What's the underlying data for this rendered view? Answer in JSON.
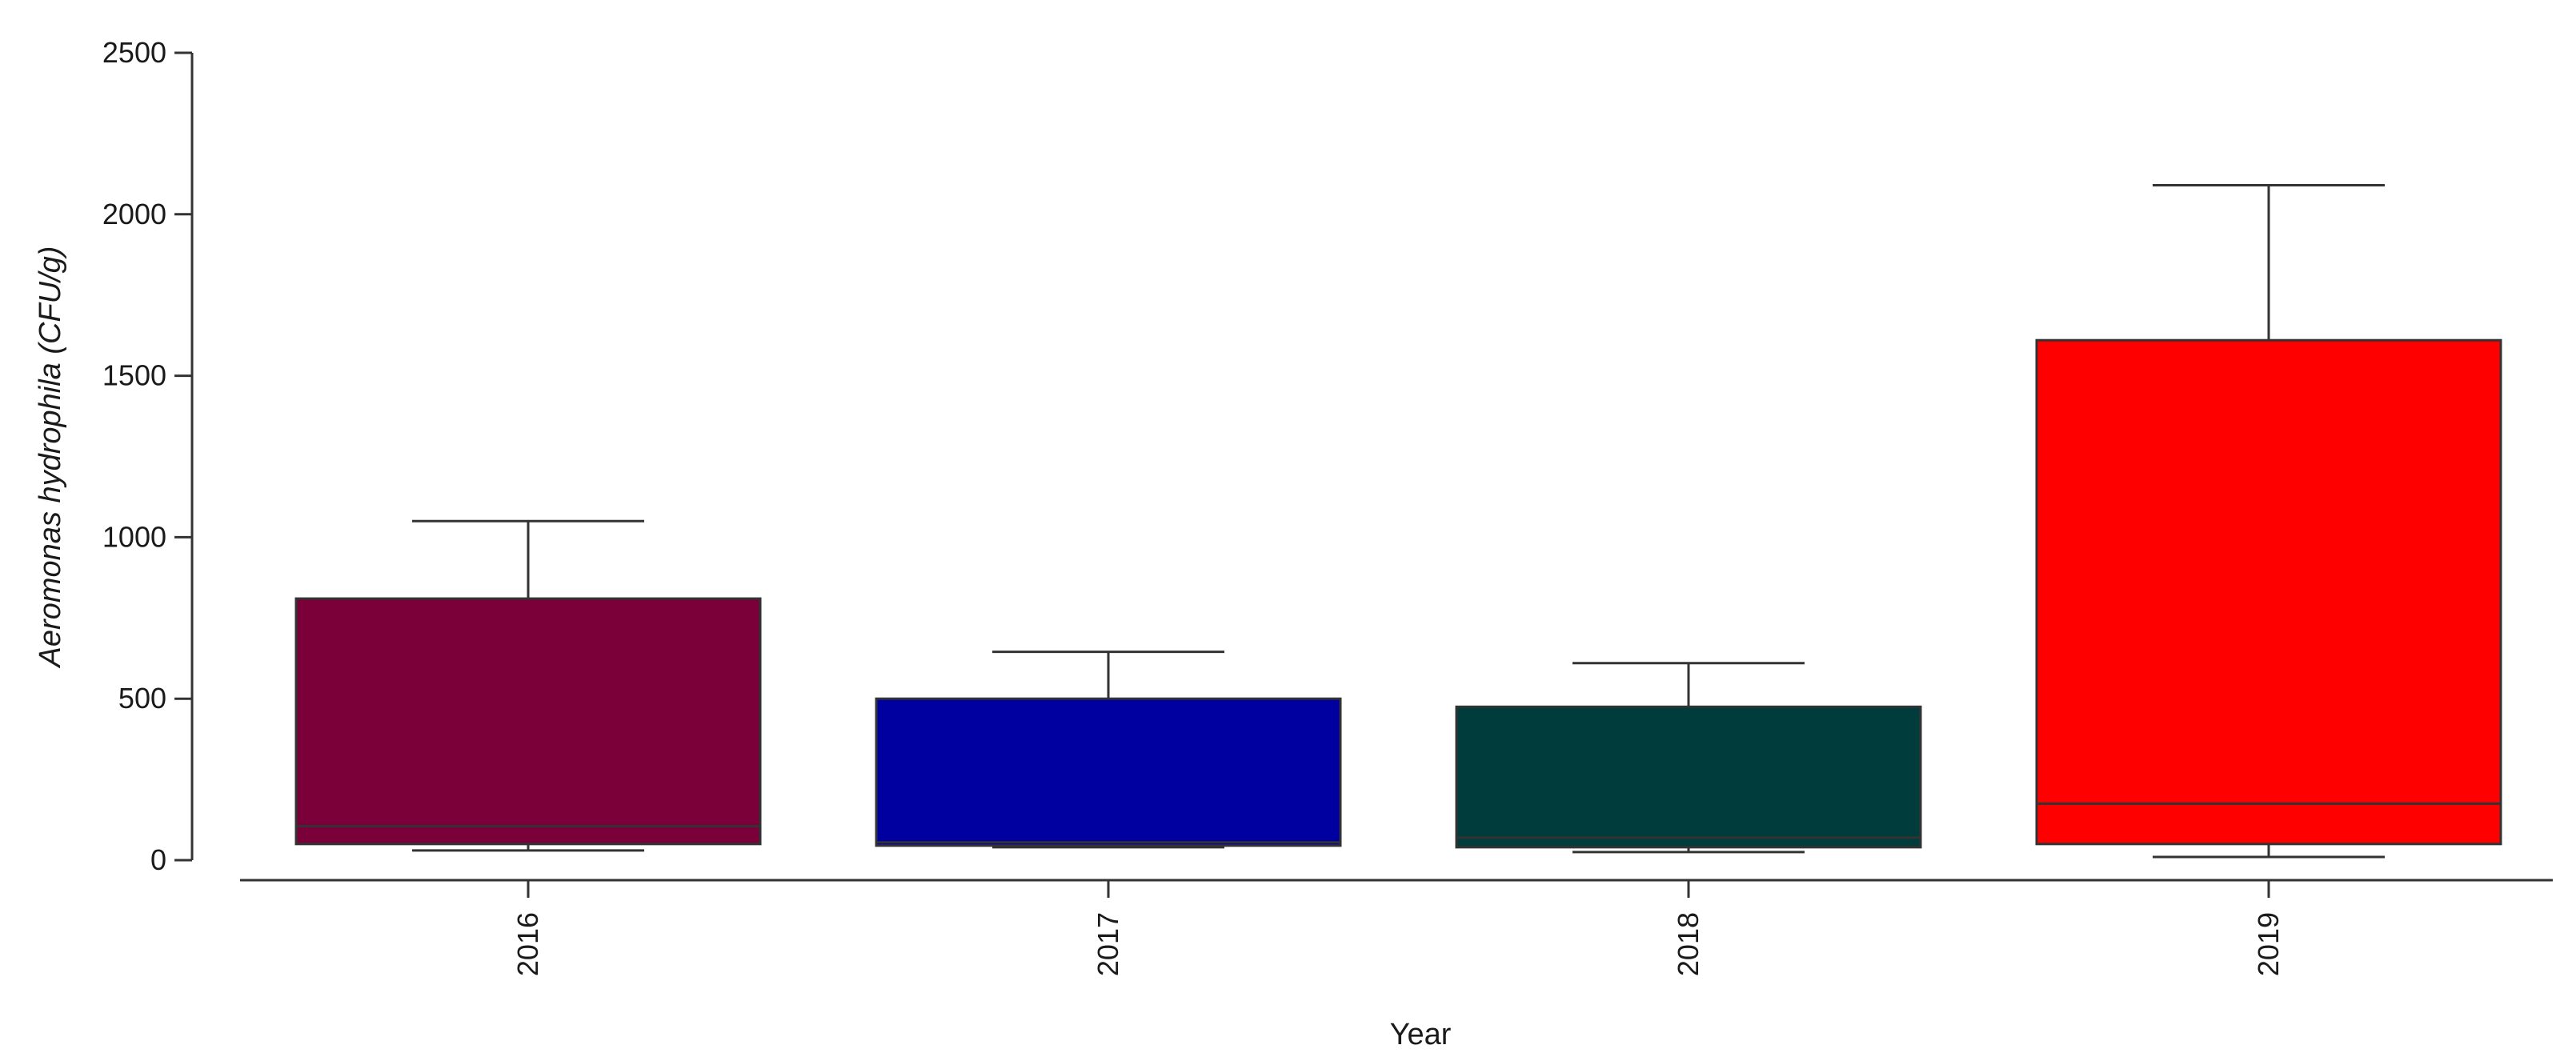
{
  "chart_data": {
    "type": "box",
    "xlabel": "Year",
    "ylabel": "Aeromonas hydrophila (CFU/g)",
    "ylim": [
      0,
      2500
    ],
    "yticks": [
      0,
      500,
      1000,
      1500,
      2000,
      2500
    ],
    "grid": false,
    "legend": "none",
    "categories": [
      "2016",
      "2017",
      "2018",
      "2019"
    ],
    "boxes": [
      {
        "category": "2016",
        "min": 30,
        "q1": 50,
        "median": 105,
        "q3": 810,
        "max": 1050,
        "color": "#7b003a"
      },
      {
        "category": "2017",
        "min": 40,
        "q1": 45,
        "median": 55,
        "q3": 500,
        "max": 645,
        "color": "#0000a0"
      },
      {
        "category": "2018",
        "min": 25,
        "q1": 40,
        "median": 70,
        "q3": 475,
        "max": 610,
        "color": "#003c3c"
      },
      {
        "category": "2019",
        "min": 10,
        "q1": 50,
        "median": 175,
        "q3": 1610,
        "max": 2090,
        "color": "#ff0000"
      }
    ]
  }
}
